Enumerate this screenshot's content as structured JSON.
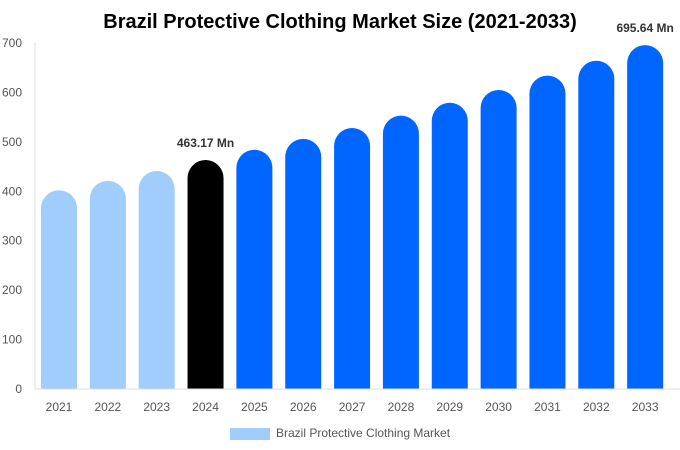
{
  "chart_data": {
    "type": "bar",
    "title": "Brazil Protective Clothing Market Size (2021-2033)",
    "xlabel": "",
    "ylabel": "",
    "ylim": [
      0,
      700
    ],
    "yticks": [
      0,
      100,
      200,
      300,
      400,
      500,
      600,
      700
    ],
    "categories": [
      "2021",
      "2022",
      "2023",
      "2024",
      "2025",
      "2026",
      "2027",
      "2028",
      "2029",
      "2030",
      "2031",
      "2032",
      "2033"
    ],
    "series": [
      {
        "name": "Brazil Protective Clothing Market",
        "values": [
          402,
          421,
          441,
          463.17,
          484,
          506,
          528,
          553,
          579,
          605,
          634,
          664,
          695.64
        ]
      }
    ],
    "data_labels": [
      {
        "category": "2024",
        "text": "463.17 Mn"
      },
      {
        "category": "2033",
        "text": "695.64 Mn"
      }
    ],
    "bar_colors": {
      "historical": "#a0cdfc",
      "base_year": "#000000",
      "forecast": "#0066ff"
    },
    "grid": false,
    "legend_placement": "bottom"
  }
}
